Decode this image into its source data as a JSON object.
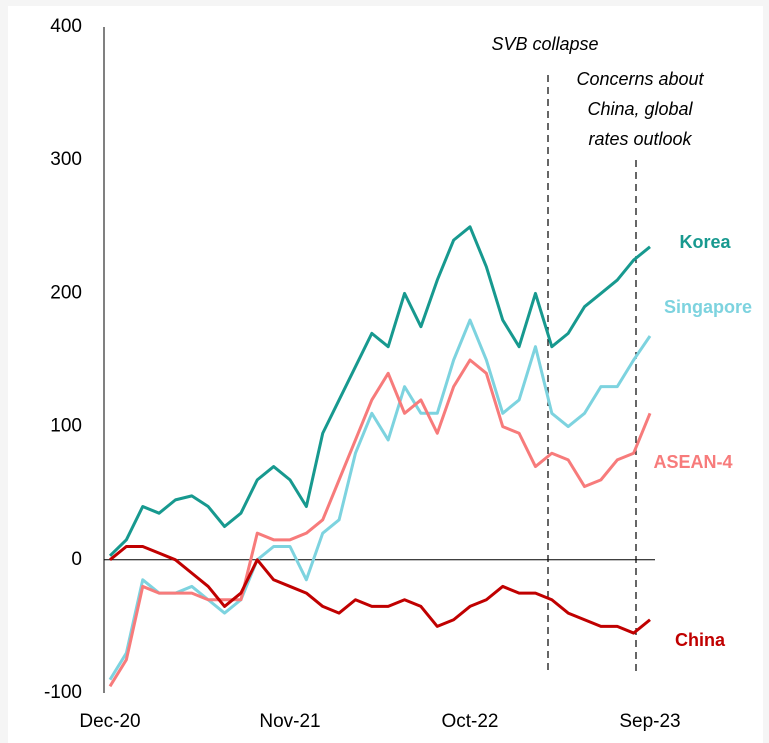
{
  "chart_data": {
    "type": "line",
    "categories": [
      "Dec-20",
      null,
      null,
      null,
      null,
      null,
      null,
      null,
      null,
      null,
      null,
      "Nov-21",
      null,
      null,
      null,
      null,
      null,
      null,
      null,
      null,
      null,
      null,
      "Oct-22",
      null,
      null,
      null,
      null,
      null,
      null,
      null,
      null,
      null,
      null,
      "Sep-23"
    ],
    "series": [
      {
        "name": "Korea",
        "color": "#17998f",
        "values": [
          3,
          15,
          40,
          35,
          45,
          48,
          40,
          25,
          35,
          60,
          70,
          60,
          40,
          95,
          120,
          145,
          170,
          160,
          200,
          175,
          210,
          240,
          250,
          220,
          180,
          160,
          200,
          160,
          170,
          190,
          200,
          210,
          225,
          235
        ]
      },
      {
        "name": "Singapore",
        "color": "#7dd3df",
        "values": [
          -90,
          -70,
          -15,
          -25,
          -25,
          -20,
          -30,
          -40,
          -30,
          0,
          10,
          10,
          -15,
          20,
          30,
          80,
          110,
          90,
          130,
          110,
          110,
          150,
          180,
          150,
          110,
          120,
          160,
          110,
          100,
          110,
          130,
          130,
          150,
          168
        ]
      },
      {
        "name": "ASEAN-4",
        "color": "#f77b7b",
        "values": [
          -95,
          -75,
          -20,
          -25,
          -25,
          -25,
          -30,
          -30,
          -30,
          20,
          15,
          15,
          20,
          30,
          60,
          90,
          120,
          140,
          110,
          120,
          95,
          130,
          150,
          140,
          100,
          95,
          70,
          80,
          75,
          55,
          60,
          75,
          80,
          110
        ]
      },
      {
        "name": "China",
        "color": "#c00000",
        "values": [
          0,
          10,
          10,
          5,
          0,
          -10,
          -20,
          -35,
          -25,
          0,
          -15,
          -20,
          -25,
          -35,
          -40,
          -30,
          -35,
          -35,
          -30,
          -35,
          -50,
          -45,
          -35,
          -30,
          -20,
          -25,
          -25,
          -30,
          -40,
          -45,
          -50,
          -50,
          -55,
          -45
        ]
      }
    ],
    "ylim": [
      -100,
      400
    ],
    "yticks": [
      -100,
      0,
      100,
      200,
      300,
      400
    ],
    "grid": false,
    "annotations": [
      [
        "SVB collapse"
      ],
      [
        "Concerns about",
        "China, global",
        "rates outlook"
      ]
    ]
  }
}
